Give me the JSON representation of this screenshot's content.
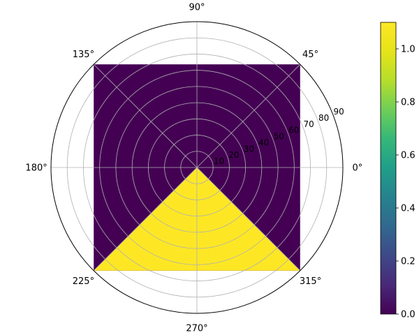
{
  "chart_data": {
    "type": "heatmap",
    "projection": "polar",
    "theta_tick_labels": [
      "0°",
      "45°",
      "90°",
      "135°",
      "180°",
      "225°",
      "270°",
      "315°"
    ],
    "theta_ticks_deg": [
      0,
      45,
      90,
      135,
      180,
      225,
      270,
      315
    ],
    "r_tick_labels": [
      "10",
      "20",
      "30",
      "40",
      "50",
      "60",
      "70",
      "80",
      "90"
    ],
    "r_ticks": [
      10,
      20,
      30,
      40,
      50,
      60,
      70,
      80,
      90
    ],
    "rlim": [
      0,
      90
    ],
    "r_label_angle_deg": 22.5,
    "grid": true,
    "colormap": "viridis",
    "regions": [
      {
        "theta_range_deg": [
          -135,
          135
        ],
        "value": 0.0
      },
      {
        "theta_range_deg": [
          225,
          315
        ],
        "value": 1.0
      }
    ],
    "region_extent": "square, half-width 90/sqrt(2) in data units",
    "colorbar": {
      "range": [
        0.0,
        1.1
      ],
      "tick_values": [
        0.0,
        0.2,
        0.4,
        0.6,
        0.8,
        1.0
      ],
      "tick_labels": [
        "0.0",
        "0.2",
        "0.4",
        "0.6",
        "0.8",
        "1.0"
      ]
    },
    "colors": {
      "low": "#440154",
      "high": "#fde725",
      "grid": "#b0b0b0"
    }
  }
}
